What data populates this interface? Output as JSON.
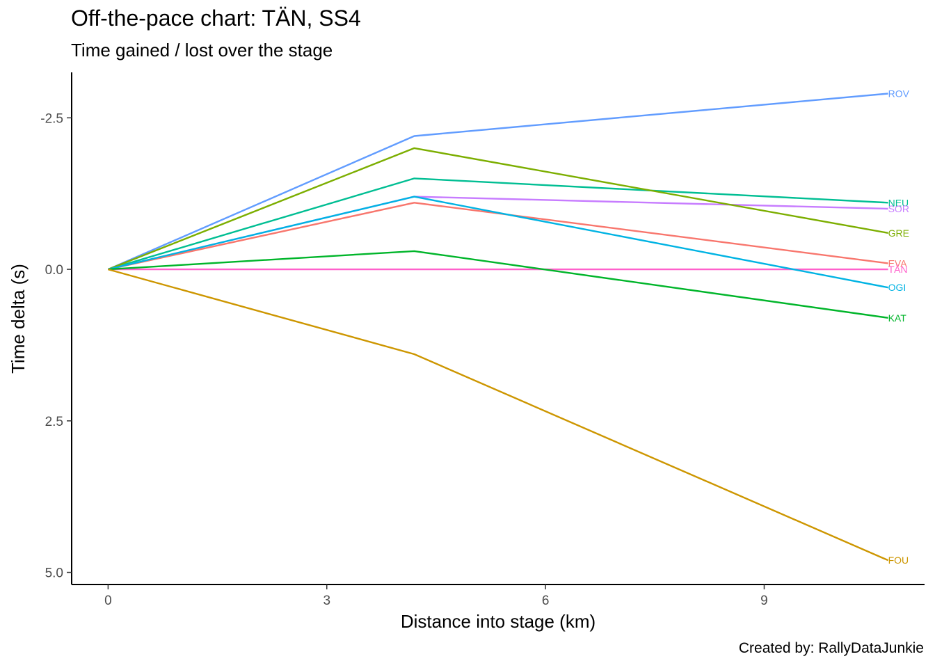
{
  "chart": {
    "title": "Off-the-pace chart: TÄN, SS4",
    "subtitle": "Time gained / lost over the stage",
    "caption": "Created by: RallyDataJunkie"
  },
  "chart_data": {
    "type": "line",
    "title": "Off-the-pace chart: TÄN, SS4",
    "subtitle": "Time gained / lost over the stage",
    "xlabel": "Distance into stage (km)",
    "ylabel": "Time delta (s)",
    "xlim": [
      -0.5,
      11.2
    ],
    "ylim": [
      5.2,
      -3.25
    ],
    "y_reversed": true,
    "x_ticks": [
      0,
      3,
      6,
      9
    ],
    "y_ticks": [
      -2.5,
      0.0,
      2.5,
      5.0
    ],
    "x_tick_labels": [
      "0",
      "3",
      "6",
      "9"
    ],
    "y_tick_labels": [
      "-2.5",
      "0.0",
      "2.5",
      "5.0"
    ],
    "grid": false,
    "legend": "none (direct labels at line ends)",
    "x": [
      0,
      4.2,
      10.7
    ],
    "series": [
      {
        "name": "ROV",
        "color": "#619CFF",
        "values": [
          0,
          -2.2,
          -2.9
        ]
      },
      {
        "name": "NEU",
        "color": "#00BE93",
        "values": [
          0,
          -1.5,
          -1.1
        ]
      },
      {
        "name": "SOR",
        "color": "#C77CFF",
        "values": [
          0,
          -1.2,
          -1.0
        ]
      },
      {
        "name": "GRE",
        "color": "#7CAE00",
        "values": [
          0,
          -2.0,
          -0.6
        ]
      },
      {
        "name": "EVA",
        "color": "#F8766D",
        "values": [
          0,
          -1.1,
          -0.1
        ]
      },
      {
        "name": "TÄN",
        "color": "#FF61CC",
        "values": [
          0,
          0.0,
          0.0
        ]
      },
      {
        "name": "OGI",
        "color": "#00B3E3",
        "values": [
          0,
          -1.2,
          0.3
        ]
      },
      {
        "name": "KAT",
        "color": "#00B52A",
        "values": [
          0,
          -0.3,
          0.8
        ]
      },
      {
        "name": "FOU",
        "color": "#CD9600",
        "values": [
          0,
          1.4,
          4.8
        ]
      }
    ]
  }
}
